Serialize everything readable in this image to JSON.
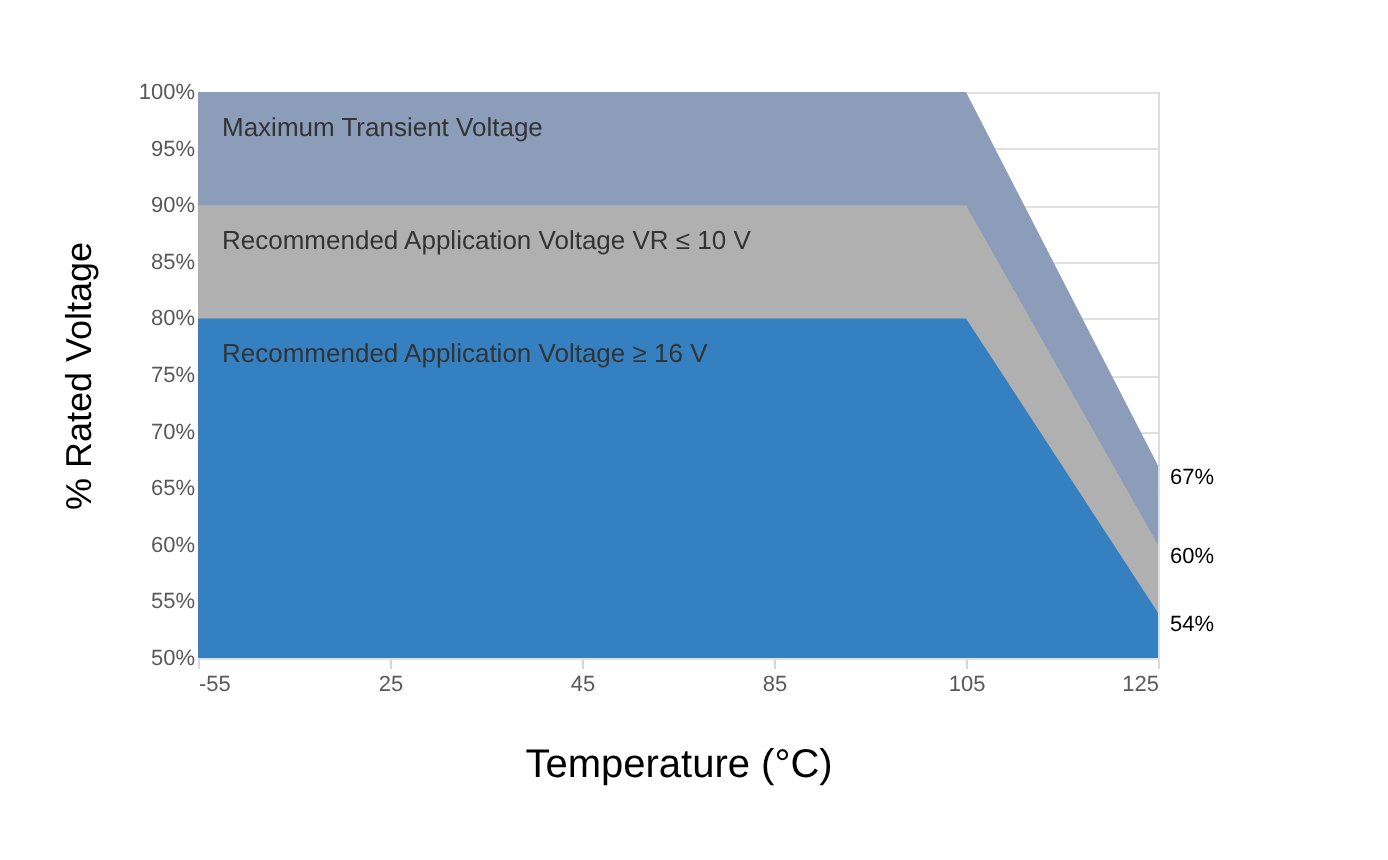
{
  "chart_data": {
    "type": "area",
    "xlabel": "Temperature (°C)",
    "ylabel": "% Rated Voltage",
    "categories": [
      "-55",
      "25",
      "45",
      "85",
      "105",
      "125"
    ],
    "series": [
      {
        "name": "Maximum Transient Voltage",
        "color": "#8b9db8",
        "values": [
          100,
          100,
          100,
          100,
          100,
          67
        ],
        "value_labels": [
          null,
          null,
          null,
          null,
          null,
          "67%"
        ]
      },
      {
        "name": "Recommended Application Voltage VR ≤ 10 V",
        "color": "#b0b0b0",
        "values": [
          90,
          90,
          90,
          90,
          90,
          60
        ],
        "value_labels": [
          null,
          null,
          null,
          null,
          null,
          "60%"
        ]
      },
      {
        "name": "Recommended Application Voltage ≥ 16 V",
        "color": "#3580c0",
        "values": [
          80,
          80,
          80,
          80,
          80,
          54
        ],
        "value_labels": [
          null,
          null,
          null,
          null,
          null,
          "54%"
        ]
      }
    ],
    "ylim": [
      50,
      100
    ],
    "yticks": [
      {
        "value": 50,
        "label": "50%"
      },
      {
        "value": 55,
        "label": "55%"
      },
      {
        "value": 60,
        "label": "60%"
      },
      {
        "value": 65,
        "label": "65%"
      },
      {
        "value": 70,
        "label": "70%"
      },
      {
        "value": 75,
        "label": "75%"
      },
      {
        "value": 80,
        "label": "80%"
      },
      {
        "value": 85,
        "label": "85%"
      },
      {
        "value": 90,
        "label": "90%"
      },
      {
        "value": 95,
        "label": "95%"
      },
      {
        "value": 100,
        "label": "100%"
      }
    ],
    "grid": "y"
  }
}
